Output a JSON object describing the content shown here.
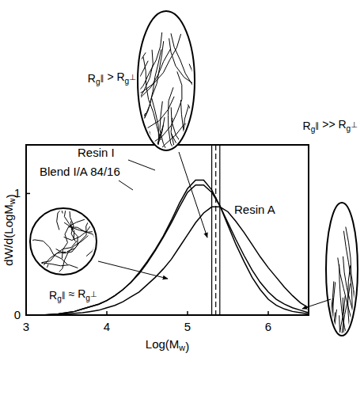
{
  "chart_data": {
    "type": "line",
    "x_label": "Log(Mw)",
    "y_label": "dW/d(LogMw)",
    "x": [
      3.2,
      3.3,
      3.4,
      3.5,
      3.6,
      3.7,
      3.8,
      3.9,
      4.0,
      4.1,
      4.2,
      4.3,
      4.4,
      4.5,
      4.6,
      4.7,
      4.8,
      4.9,
      5.0,
      5.1,
      5.2,
      5.3,
      5.4,
      5.5,
      5.6,
      5.7,
      5.8,
      5.9,
      6.0,
      6.1,
      6.2,
      6.3,
      6.4,
      6.5
    ],
    "series": [
      {
        "name": "Resin I",
        "color": "#000000",
        "line_style": "solid",
        "values": [
          0.0,
          0.005,
          0.01,
          0.02,
          0.03,
          0.05,
          0.07,
          0.09,
          0.12,
          0.16,
          0.21,
          0.27,
          0.35,
          0.44,
          0.54,
          0.65,
          0.78,
          0.92,
          1.04,
          1.11,
          1.11,
          1.03,
          0.9,
          0.74,
          0.58,
          0.44,
          0.31,
          0.21,
          0.13,
          0.08,
          0.05,
          0.03,
          0.02,
          0.01
        ]
      },
      {
        "name": "Blend I/A 84/16",
        "color": "#000000",
        "line_style": "solid",
        "values": [
          0.0,
          0.005,
          0.01,
          0.02,
          0.03,
          0.05,
          0.07,
          0.09,
          0.12,
          0.16,
          0.21,
          0.27,
          0.34,
          0.43,
          0.53,
          0.64,
          0.76,
          0.89,
          1.01,
          1.07,
          1.07,
          1.01,
          0.9,
          0.76,
          0.62,
          0.49,
          0.37,
          0.27,
          0.19,
          0.13,
          0.09,
          0.06,
          0.04,
          0.02
        ]
      },
      {
        "name": "Resin A",
        "color": "#000000",
        "line_style": "solid",
        "values": [
          0.0,
          0.0,
          0.005,
          0.01,
          0.015,
          0.02,
          0.03,
          0.04,
          0.06,
          0.08,
          0.11,
          0.15,
          0.19,
          0.25,
          0.31,
          0.38,
          0.46,
          0.56,
          0.66,
          0.76,
          0.84,
          0.89,
          0.89,
          0.85,
          0.77,
          0.68,
          0.58,
          0.48,
          0.39,
          0.31,
          0.23,
          0.16,
          0.1,
          0.06
        ]
      }
    ],
    "vlines": [
      {
        "value": 5.3,
        "line_style": "solid"
      },
      {
        "value": 5.35,
        "line_style": "dashed"
      },
      {
        "value": 5.4,
        "line_style": "solid"
      }
    ],
    "annotations": [
      "Rg∥ ≈ Rg⊥",
      "Rg∥ > Rg⊥",
      "Rg∥ >> Rg⊥"
    ],
    "xlim": [
      3,
      6.5
    ],
    "xticks": [
      3,
      4,
      5,
      6
    ],
    "ylim": [
      0,
      1.4
    ],
    "yticks": [
      0,
      1
    ],
    "grid": false
  }
}
